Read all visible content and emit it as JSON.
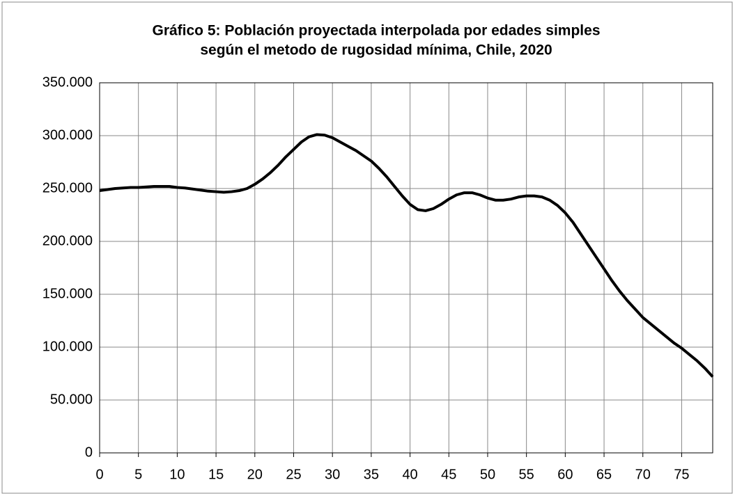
{
  "chart_data": {
    "type": "line",
    "title": "Gráfico 5: Población proyectada interpolada por edades simples",
    "subtitle": "según el metodo de rugosidad mínima, Chile, 2020",
    "x": [
      0,
      1,
      2,
      3,
      4,
      5,
      6,
      7,
      8,
      9,
      10,
      11,
      12,
      13,
      14,
      15,
      16,
      17,
      18,
      19,
      20,
      21,
      22,
      23,
      24,
      25,
      26,
      27,
      28,
      29,
      30,
      31,
      32,
      33,
      34,
      35,
      36,
      37,
      38,
      39,
      40,
      41,
      42,
      43,
      44,
      45,
      46,
      47,
      48,
      49,
      50,
      51,
      52,
      53,
      54,
      55,
      56,
      57,
      58,
      59,
      60,
      61,
      62,
      63,
      64,
      65,
      66,
      67,
      68,
      69,
      70,
      71,
      72,
      73,
      74,
      75,
      76,
      77,
      78,
      79
    ],
    "series": [
      {
        "color": "#000000",
        "values": [
          248000,
          249000,
          250000,
          250500,
          251000,
          251000,
          251500,
          252000,
          252000,
          252000,
          251000,
          250500,
          249500,
          248500,
          247500,
          247000,
          246500,
          247000,
          248000,
          250000,
          254000,
          259000,
          265000,
          272000,
          280000,
          287000,
          294000,
          299000,
          301000,
          300500,
          298000,
          294000,
          290000,
          286000,
          281000,
          276000,
          269000,
          261000,
          252000,
          243000,
          235000,
          230000,
          229000,
          231000,
          235000,
          240000,
          244000,
          246000,
          246000,
          244000,
          241000,
          239000,
          239000,
          240000,
          242000,
          243000,
          243000,
          242000,
          239000,
          234000,
          227000,
          218000,
          207000,
          196000,
          185000,
          174000,
          163000,
          153000,
          144000,
          136000,
          128000,
          122000,
          116000,
          110000,
          104000,
          99000,
          93000,
          87000,
          80000,
          72000
        ]
      }
    ],
    "xlim": [
      0,
      79
    ],
    "xticks": [
      0,
      5,
      10,
      15,
      20,
      25,
      30,
      35,
      40,
      45,
      50,
      55,
      60,
      65,
      70,
      75
    ],
    "ylim": [
      0,
      350000
    ],
    "yticks": [
      {
        "value": 0,
        "label": "0"
      },
      {
        "value": 50000,
        "label": "50.000"
      },
      {
        "value": 100000,
        "label": "100.000"
      },
      {
        "value": 150000,
        "label": "150.000"
      },
      {
        "value": 200000,
        "label": "200.000"
      },
      {
        "value": 250000,
        "label": "250.000"
      },
      {
        "value": 300000,
        "label": "300.000"
      },
      {
        "value": 350000,
        "label": "350.000"
      }
    ],
    "grid": true
  }
}
